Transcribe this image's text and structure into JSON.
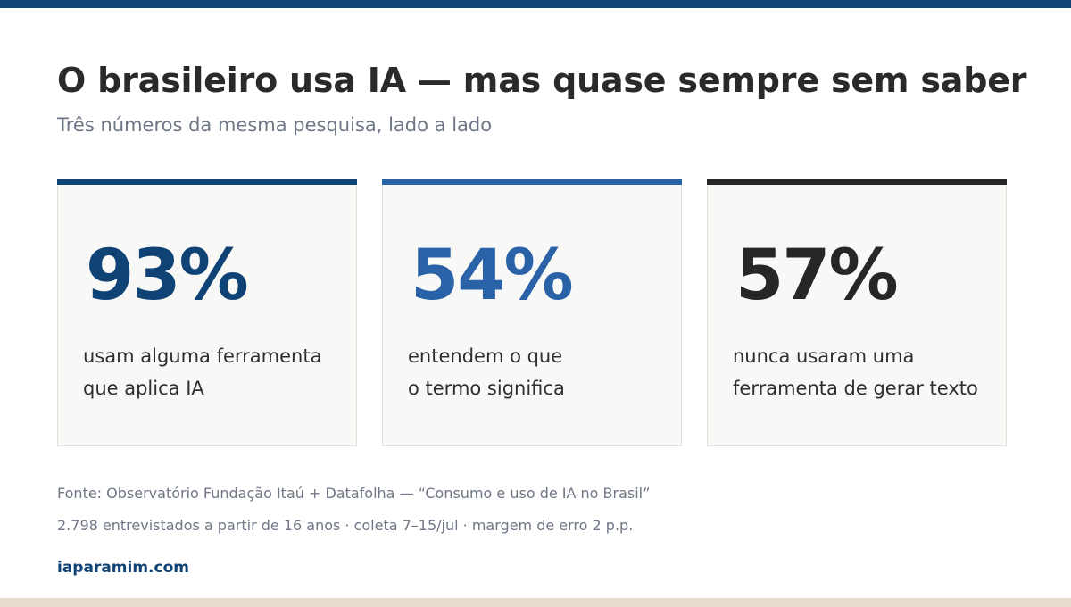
{
  "colors": {
    "top_bar": "#0f4275",
    "bottom_bar": "#e6ddd0",
    "card1_accent": "#0f4275",
    "card2_accent": "#2a62a8",
    "card3_accent": "#262626",
    "site": "#0f4275"
  },
  "header": {
    "title": "O brasileiro usa IA — mas quase sempre sem saber",
    "subtitle": "Três números da mesma pesquisa, lado a lado"
  },
  "cards": [
    {
      "value": "93%",
      "line1": "usam alguma ferramenta",
      "line2": "que aplica IA"
    },
    {
      "value": "54%",
      "line1": "entendem o que",
      "line2": "o termo significa"
    },
    {
      "value": "57%",
      "line1": "nunca usaram uma",
      "line2": "ferramenta de gerar texto"
    }
  ],
  "footer": {
    "source_line1": "Fonte: Observatório Fundação Itaú + Datafolha — “Consumo e uso de IA no Brasil”",
    "source_line2": "2.798 entrevistados a partir de 16 anos · coleta 7–15/jul · margem de erro 2 p.p.",
    "site": "iaparamim.com"
  }
}
